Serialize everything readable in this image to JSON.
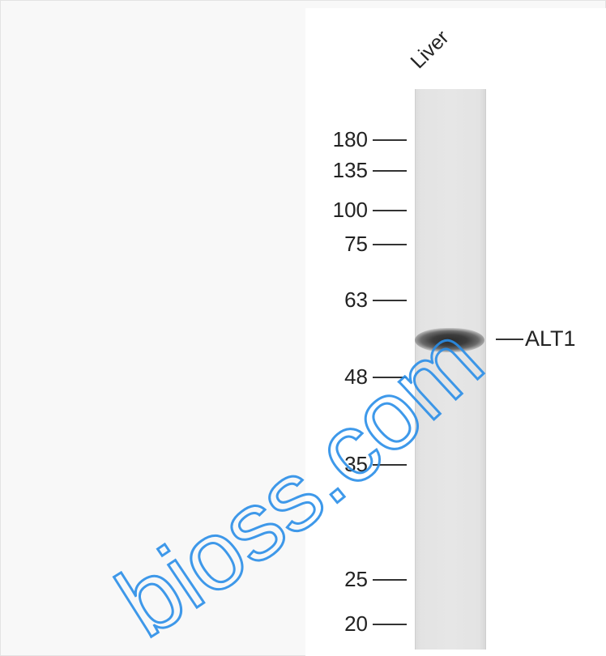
{
  "lane_label": "Liver",
  "markers": [
    {
      "label": "180",
      "kda": 180
    },
    {
      "label": "135",
      "kda": 135
    },
    {
      "label": "100",
      "kda": 100
    },
    {
      "label": "75",
      "kda": 75
    },
    {
      "label": "63",
      "kda": 63
    },
    {
      "label": "48",
      "kda": 48
    },
    {
      "label": "35",
      "kda": 35
    },
    {
      "label": "25",
      "kda": 25
    },
    {
      "label": "20",
      "kda": 20
    }
  ],
  "target_label": "ALT1",
  "watermark": {
    "text": ".com",
    "text2": "bioss.com",
    "color": "#2a8ee8"
  }
}
